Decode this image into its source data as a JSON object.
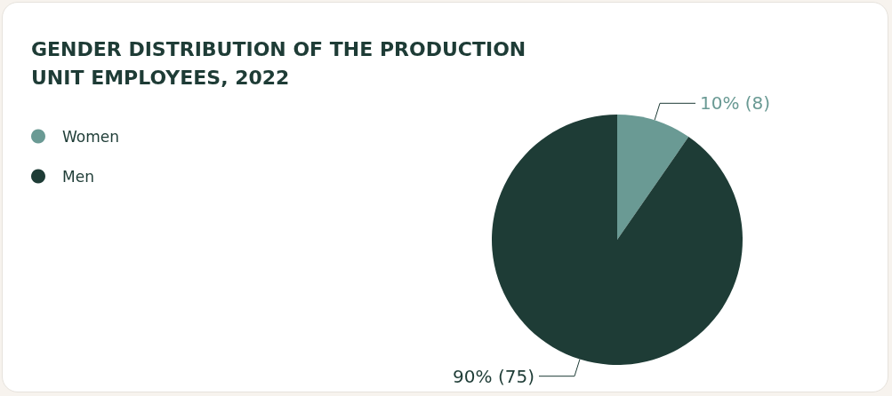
{
  "chart_data": {
    "type": "pie",
    "title": "GENDER DISTRIBUTION OF THE PRODUCTION\nUNIT EMPLOYEES, 2022",
    "categories": [
      "Women",
      "Men"
    ],
    "values": [
      8,
      75
    ],
    "colors": [
      "#6a9a94",
      "#1e3c36"
    ],
    "value_labels": [
      "10% (8)",
      "90% (75)"
    ],
    "legend": "left"
  }
}
